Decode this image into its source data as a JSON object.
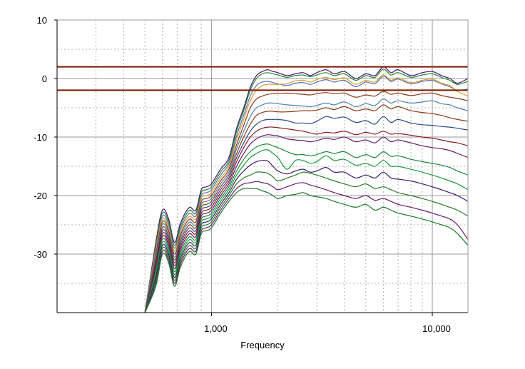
{
  "chart_data": {
    "type": "line",
    "title": "",
    "xlabel": "Frequency",
    "ylabel": "",
    "x_scale": "log",
    "xlim": [
      200,
      14500
    ],
    "ylim": [
      -40,
      10
    ],
    "x_ticks": [
      {
        "value": 1000,
        "label": "1,000"
      },
      {
        "value": 10000,
        "label": "10,000"
      }
    ],
    "y_ticks": [
      {
        "value": 10,
        "label": "10"
      },
      {
        "value": 0,
        "label": "0"
      },
      {
        "value": -10,
        "label": "-10"
      },
      {
        "value": -20,
        "label": "-20"
      },
      {
        "value": -30,
        "label": "-30"
      }
    ],
    "grid": true,
    "legend": "none",
    "reference_lines": [
      {
        "y": 2,
        "color": "#7a1a00"
      },
      {
        "y": -2,
        "color": "#7a1a00"
      }
    ],
    "x": [
      500,
      560,
      600,
      640,
      680,
      720,
      760,
      800,
      850,
      900,
      950,
      1000,
      1100,
      1200,
      1300,
      1400,
      1500,
      1600,
      1700,
      1800,
      1900,
      2000,
      2200,
      2400,
      2600,
      2800,
      3000,
      3300,
      3600,
      4000,
      4500,
      5000,
      5500,
      6000,
      6500,
      7000,
      8000,
      9000,
      10000,
      11000,
      12000,
      13000,
      14500
    ],
    "series": [
      {
        "color": "#4b0f6e",
        "values": [
          -40,
          -28,
          -22.5,
          -24,
          -28,
          -25,
          -23,
          -22,
          -22.5,
          -19,
          -18.5,
          -18,
          -15.5,
          -13.5,
          -8.5,
          -5,
          -1.5,
          0.5,
          1.2,
          1.5,
          1.2,
          1.0,
          0.5,
          0.8,
          1.0,
          0.5,
          1.0,
          1.5,
          0.8,
          1.2,
          0.0,
          0.8,
          0.5,
          2.0,
          1.0,
          1.5,
          0.5,
          1.0,
          1.2,
          0.5,
          0.0,
          -0.8,
          0.0
        ]
      },
      {
        "color": "#1f8a2e",
        "values": [
          -40,
          -28.5,
          -23,
          -24.5,
          -28.5,
          -25.5,
          -23.5,
          -22.5,
          -23,
          -19.5,
          -19,
          -18.5,
          -16,
          -14,
          -9,
          -5.5,
          -2,
          0,
          0.8,
          1.0,
          0.8,
          0.6,
          0.2,
          0.5,
          0.6,
          0.3,
          0.6,
          1.0,
          0.5,
          0.8,
          -0.3,
          0.5,
          0.2,
          1.6,
          0.6,
          1.0,
          0.2,
          0.6,
          0.8,
          0.2,
          -0.3,
          -1.0,
          -0.5
        ]
      },
      {
        "color": "#5a6fb0",
        "values": [
          -40,
          -29,
          -23.5,
          -25,
          -29,
          -26,
          -24,
          -23,
          -23.5,
          -20,
          -19.5,
          -19,
          -16.5,
          -14.5,
          -9.8,
          -6.3,
          -3,
          -1.2,
          -0.6,
          -0.5,
          -0.7,
          -0.9,
          -1.2,
          -0.8,
          -0.7,
          -1.0,
          -0.6,
          -0.2,
          -0.6,
          -0.3,
          -1.4,
          -0.6,
          -0.9,
          0.4,
          -0.5,
          -0.1,
          -0.9,
          -0.5,
          -0.3,
          -0.9,
          -1.4,
          -2.0,
          -1.8
        ]
      },
      {
        "color": "#d9a030",
        "values": [
          -40,
          -29.5,
          -24,
          -25.5,
          -29.5,
          -26.5,
          -24.5,
          -23.5,
          -24,
          -20.5,
          -20,
          -19.5,
          -17,
          -15,
          -10.5,
          -7,
          -3.8,
          -2,
          -1.2,
          -1.0,
          -1.0,
          -1.0,
          -0.9,
          -0.4,
          -0.3,
          -0.6,
          -0.2,
          0.2,
          -0.2,
          0.1,
          -1.0,
          -0.3,
          -0.6,
          0.6,
          -0.3,
          0.1,
          -0.7,
          -0.3,
          -0.1,
          -0.8,
          -1.2,
          -2.2,
          -3.0
        ]
      },
      {
        "color": "#8a3a1a",
        "values": [
          -40,
          -30,
          -24.5,
          -26,
          -30,
          -27,
          -25,
          -24,
          -24.5,
          -21,
          -20.5,
          -20,
          -17.5,
          -15.5,
          -11.3,
          -8,
          -5,
          -3.5,
          -3.0,
          -2.7,
          -2.6,
          -2.6,
          -2.5,
          -2.6,
          -2.7,
          -2.8,
          -2.6,
          -2.4,
          -2.6,
          -2.5,
          -3.2,
          -2.8,
          -3.0,
          -2.2,
          -2.7,
          -2.5,
          -2.9,
          -2.6,
          -2.5,
          -2.9,
          -3.2,
          -3.4,
          -3.8
        ]
      },
      {
        "color": "#4b7fb0",
        "values": [
          -40,
          -30.5,
          -25,
          -26.5,
          -30.5,
          -27.5,
          -25.5,
          -24.5,
          -25,
          -21.5,
          -21,
          -20.5,
          -18,
          -16,
          -12,
          -9,
          -6.5,
          -5,
          -4.5,
          -4.2,
          -4.2,
          -4.3,
          -4.5,
          -4.6,
          -4.7,
          -4.8,
          -4.6,
          -4.2,
          -4.5,
          -4.0,
          -4.8,
          -4.3,
          -4.6,
          -3.5,
          -4.2,
          -3.8,
          -4.2,
          -4.0,
          -3.8,
          -4.3,
          -4.5,
          -5.0,
          -5.5
        ]
      },
      {
        "color": "#8b3a12",
        "values": [
          -40,
          -31,
          -25.5,
          -27,
          -31,
          -28,
          -26,
          -25,
          -25.5,
          -22,
          -21.5,
          -21,
          -18.5,
          -16.5,
          -12.8,
          -10,
          -7.8,
          -6.3,
          -5.8,
          -5.6,
          -5.6,
          -5.7,
          -5.7,
          -5.6,
          -5.5,
          -5.5,
          -5.4,
          -5.0,
          -5.3,
          -4.8,
          -5.5,
          -5.2,
          -5.5,
          -4.5,
          -5.2,
          -4.8,
          -5.5,
          -5.8,
          -6.0,
          -6.3,
          -6.7,
          -7.0,
          -7.3
        ]
      },
      {
        "color": "#2a4a8a",
        "values": [
          -40,
          -31.5,
          -26,
          -27.5,
          -31.5,
          -28.5,
          -26.5,
          -25.5,
          -26,
          -22.5,
          -22,
          -21.5,
          -19,
          -17,
          -13.5,
          -11,
          -9,
          -7.8,
          -7.2,
          -7.0,
          -7.0,
          -7.0,
          -7.2,
          -7.6,
          -7.6,
          -7.7,
          -7.3,
          -6.5,
          -6.8,
          -6.6,
          -7.5,
          -7.2,
          -7.8,
          -6.5,
          -7.5,
          -7.0,
          -7.6,
          -7.9,
          -8.0,
          -8.2,
          -8.3,
          -8.5,
          -8.8
        ]
      },
      {
        "color": "#8a1a2a",
        "values": [
          -40,
          -32,
          -26.5,
          -28,
          -32,
          -29,
          -27,
          -26,
          -26.5,
          -23,
          -22.5,
          -22,
          -19.5,
          -17.5,
          -14.2,
          -11.8,
          -10,
          -9,
          -8.5,
          -8.3,
          -8.3,
          -8.4,
          -8.6,
          -8.8,
          -9.0,
          -9.3,
          -9.5,
          -9.2,
          -9.3,
          -9.0,
          -9.6,
          -9.2,
          -9.5,
          -9.0,
          -9.5,
          -9.4,
          -9.7,
          -10.0,
          -10.2,
          -10.5,
          -10.8,
          -11.0,
          -11.5
        ]
      },
      {
        "color": "#6a1a6a",
        "values": [
          -40,
          -32.5,
          -27,
          -28.5,
          -32.5,
          -29.5,
          -27.5,
          -26.5,
          -27,
          -23.5,
          -23,
          -22.5,
          -20,
          -18,
          -15,
          -12.8,
          -11.2,
          -10.3,
          -9.8,
          -9.6,
          -9.7,
          -9.8,
          -10.3,
          -10.5,
          -10.6,
          -10.8,
          -10.6,
          -10.2,
          -10.4,
          -10.0,
          -10.8,
          -10.5,
          -11.0,
          -10.0,
          -10.8,
          -10.5,
          -11.0,
          -11.5,
          -11.8,
          -12.0,
          -12.3,
          -12.8,
          -13.5
        ]
      },
      {
        "color": "#1a8a3a",
        "values": [
          -40,
          -33,
          -27.5,
          -29,
          -33,
          -30,
          -28,
          -27,
          -27.5,
          -24,
          -23.5,
          -23,
          -20.5,
          -18.5,
          -15.8,
          -13.8,
          -12.5,
          -11.7,
          -11.3,
          -11.2,
          -11.5,
          -11.8,
          -12.5,
          -13.0,
          -13.0,
          -13.2,
          -13.0,
          -12.5,
          -12.8,
          -12.5,
          -13.5,
          -13.0,
          -13.5,
          -12.5,
          -13.3,
          -13.2,
          -13.8,
          -14.2,
          -14.5,
          -14.8,
          -15.2,
          -15.8,
          -16.5
        ]
      },
      {
        "color": "#1a9a3a",
        "values": [
          -40,
          -33.5,
          -28,
          -29.5,
          -33.5,
          -30.5,
          -28.5,
          -27.5,
          -28,
          -24.5,
          -24,
          -23.5,
          -21,
          -19,
          -16.5,
          -14.8,
          -13.5,
          -12.8,
          -12.3,
          -12.2,
          -12.8,
          -13.5,
          -15.5,
          -14.0,
          -14.0,
          -14.5,
          -14.2,
          -13.2,
          -14.0,
          -13.8,
          -14.8,
          -14.5,
          -15.0,
          -14.0,
          -15.0,
          -15.0,
          -15.5,
          -16.0,
          -16.5,
          -17.0,
          -17.5,
          -18.0,
          -19.0
        ]
      },
      {
        "color": "#3a1a6a",
        "values": [
          -40,
          -34,
          -28.5,
          -30,
          -34,
          -31,
          -29,
          -28,
          -28.5,
          -25,
          -24.5,
          -24,
          -21.5,
          -19.5,
          -17.2,
          -15.8,
          -14.8,
          -14.2,
          -14.0,
          -14.1,
          -15.0,
          -15.8,
          -16.3,
          -15.8,
          -15.5,
          -16.0,
          -15.8,
          -15.2,
          -16.0,
          -16.0,
          -17.0,
          -16.5,
          -17.0,
          -16.0,
          -17.0,
          -17.2,
          -17.5,
          -18.0,
          -18.5,
          -19.0,
          -19.5,
          -20.0,
          -21.0
        ]
      },
      {
        "color": "#2a7a2a",
        "values": [
          -40,
          -34.5,
          -29,
          -30.5,
          -34.5,
          -31.5,
          -29.5,
          -28.5,
          -29,
          -25.5,
          -25,
          -24.5,
          -22,
          -20,
          -18,
          -17,
          -16.5,
          -16.0,
          -16.0,
          -16.2,
          -16.8,
          -17.5,
          -17.0,
          -16.5,
          -16.0,
          -16.2,
          -16.5,
          -17.0,
          -17.5,
          -18.0,
          -18.5,
          -18.0,
          -18.8,
          -18.5,
          -19.0,
          -19.5,
          -20.0,
          -20.5,
          -21.0,
          -21.5,
          -22.0,
          -22.5,
          -23.5
        ]
      },
      {
        "color": "#6a1a6a",
        "values": [
          -40,
          -35,
          -29.5,
          -31,
          -35,
          -32,
          -30,
          -29,
          -29.5,
          -26,
          -25.5,
          -25,
          -22.5,
          -20.5,
          -18.8,
          -18.0,
          -17.8,
          -17.6,
          -17.8,
          -18.0,
          -18.5,
          -19.0,
          -18.5,
          -18.0,
          -17.8,
          -18.2,
          -18.5,
          -19.0,
          -19.5,
          -20.0,
          -20.5,
          -20.0,
          -20.8,
          -20.5,
          -21.0,
          -21.5,
          -22.0,
          -22.5,
          -23.0,
          -23.5,
          -24.0,
          -25.0,
          -27.5
        ]
      },
      {
        "color": "#1a7a2a",
        "values": [
          -40,
          -35.5,
          -30,
          -31.5,
          -35.5,
          -32.5,
          -30.5,
          -29.5,
          -30,
          -26.5,
          -26,
          -25.5,
          -23,
          -21,
          -19.5,
          -18.8,
          -18.8,
          -18.8,
          -19.2,
          -19.5,
          -20.0,
          -20.5,
          -20.0,
          -19.8,
          -19.5,
          -20.0,
          -20.2,
          -20.5,
          -21.0,
          -21.5,
          -22.0,
          -21.5,
          -22.5,
          -22.0,
          -22.5,
          -23.0,
          -23.5,
          -24.0,
          -24.5,
          -25.0,
          -25.5,
          -26.5,
          -28.5
        ]
      }
    ]
  }
}
